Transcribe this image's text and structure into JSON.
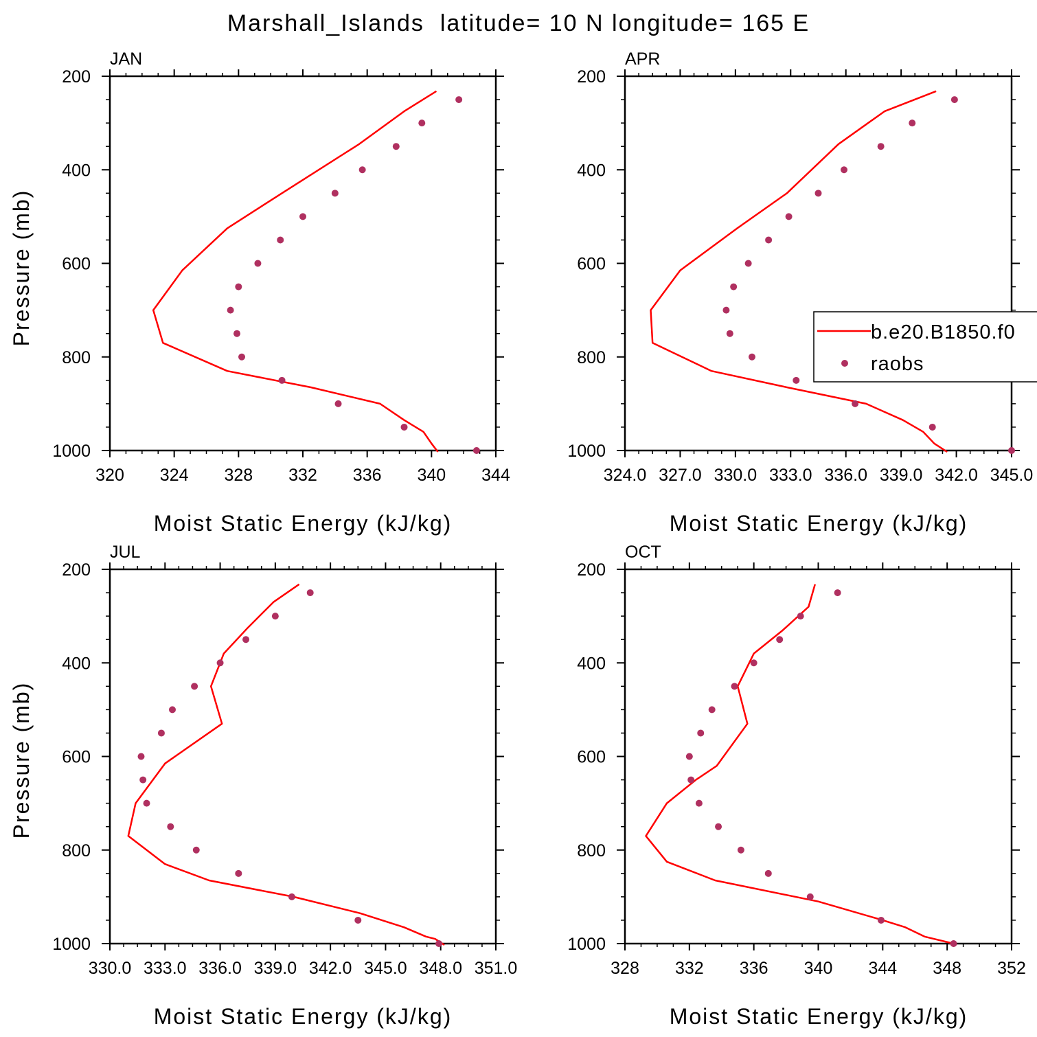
{
  "title": "Marshall_Islands  latitude= 10 N longitude= 165 E",
  "colors": {
    "model_line": "#ff0000",
    "obs_marker": "#b03060",
    "axes": "#000000"
  },
  "legend": {
    "placement": "right edge of APR panel",
    "entries": [
      {
        "label": "b.e20.B1850.f0",
        "style": "line",
        "color": "#ff0000"
      },
      {
        "label": "raobs",
        "style": "marker",
        "color": "#b03060"
      }
    ]
  },
  "chart_data": [
    {
      "type": "line",
      "panel": "JAN",
      "xlabel": "Moist Static Energy (kJ/kg)",
      "ylabel": "Pressure (mb)",
      "xlim": [
        320,
        344
      ],
      "ylim": [
        200,
        1000
      ],
      "y_inverted": true,
      "xticks": [
        "320",
        "324",
        "328",
        "332",
        "336",
        "340",
        "344"
      ],
      "xtick_values": [
        320,
        324,
        328,
        332,
        336,
        340,
        344
      ],
      "yticks": [
        "200",
        "400",
        "600",
        "800",
        "1000"
      ],
      "series": [
        {
          "name": "b.e20.B1850.f0",
          "style": "line",
          "x": [
            340.4,
            340.0,
            339.5,
            338.3,
            336.8,
            332.5,
            327.3,
            323.3,
            322.7,
            324.5,
            327.3,
            330.7,
            335.5,
            338.3,
            340.3
          ],
          "y": [
            1003,
            985,
            960,
            935,
            900,
            865,
            830,
            770,
            700,
            615,
            525,
            450,
            345,
            275,
            232
          ]
        },
        {
          "name": "raobs",
          "style": "marker",
          "x": [
            342.8,
            338.3,
            334.2,
            330.7,
            328.2,
            327.9,
            327.5,
            328.0,
            329.2,
            330.6,
            332.0,
            334.0,
            335.7,
            337.8,
            339.4,
            341.7
          ],
          "y": [
            1000,
            950,
            900,
            850,
            800,
            750,
            700,
            650,
            600,
            550,
            500,
            450,
            400,
            350,
            300,
            250
          ]
        }
      ]
    },
    {
      "type": "line",
      "panel": "APR",
      "xlabel": "Moist Static Energy (kJ/kg)",
      "ylabel": "",
      "xlim": [
        324.0,
        345.0
      ],
      "ylim": [
        200,
        1000
      ],
      "y_inverted": true,
      "xticks": [
        "324.0",
        "327.0",
        "330.0",
        "333.0",
        "336.0",
        "339.0",
        "342.0",
        "345.0"
      ],
      "xtick_values": [
        324,
        327,
        330,
        333,
        336,
        339,
        342,
        345
      ],
      "yticks": [
        "200",
        "400",
        "600",
        "800",
        "1000"
      ],
      "series": [
        {
          "name": "b.e20.B1850.f0",
          "style": "line",
          "x": [
            341.5,
            340.8,
            340.2,
            339.1,
            337.1,
            332.8,
            328.7,
            325.5,
            325.4,
            327.0,
            330.1,
            332.8,
            335.6,
            338.1,
            340.9
          ],
          "y": [
            1003,
            985,
            960,
            935,
            900,
            865,
            830,
            770,
            700,
            615,
            525,
            450,
            345,
            275,
            232
          ]
        },
        {
          "name": "raobs",
          "style": "marker",
          "x": [
            345.0,
            340.7,
            336.5,
            333.3,
            330.9,
            329.7,
            329.5,
            329.9,
            330.7,
            331.8,
            332.9,
            334.5,
            335.9,
            337.9,
            339.6,
            341.9
          ],
          "y": [
            1000,
            950,
            900,
            850,
            800,
            750,
            700,
            650,
            600,
            550,
            500,
            450,
            400,
            350,
            300,
            250
          ]
        }
      ]
    },
    {
      "type": "line",
      "panel": "JUL",
      "xlabel": "Moist Static Energy (kJ/kg)",
      "ylabel": "Pressure (mb)",
      "xlim": [
        330.0,
        351.0
      ],
      "ylim": [
        200,
        1000
      ],
      "y_inverted": true,
      "xticks": [
        "330.0",
        "333.0",
        "336.0",
        "339.0",
        "342.0",
        "345.0",
        "348.0",
        "351.0"
      ],
      "xtick_values": [
        330,
        333,
        336,
        339,
        342,
        345,
        348,
        351
      ],
      "yticks": [
        "200",
        "400",
        "600",
        "800",
        "1000"
      ],
      "series": [
        {
          "name": "b.e20.B1850.f0",
          "style": "line",
          "x": [
            348.2,
            347.7,
            347.2,
            346.0,
            343.6,
            340.0,
            335.4,
            333.0,
            331.0,
            331.4,
            333.0,
            336.1,
            335.5,
            336.2,
            337.5,
            338.9,
            340.3
          ],
          "y": [
            1003,
            990,
            985,
            965,
            935,
            900,
            865,
            830,
            770,
            700,
            615,
            530,
            450,
            380,
            325,
            270,
            232
          ]
        },
        {
          "name": "raobs",
          "style": "marker",
          "x": [
            347.9,
            343.5,
            339.9,
            337.0,
            334.7,
            333.3,
            332.0,
            331.8,
            331.7,
            332.8,
            333.4,
            334.6,
            336.0,
            337.4,
            339.0,
            340.9
          ],
          "y": [
            1000,
            950,
            900,
            850,
            800,
            750,
            700,
            650,
            600,
            550,
            500,
            450,
            400,
            350,
            300,
            250
          ]
        }
      ]
    },
    {
      "type": "line",
      "panel": "OCT",
      "xlabel": "Moist Static Energy (kJ/kg)",
      "ylabel": "",
      "xlim": [
        328,
        352
      ],
      "ylim": [
        200,
        1000
      ],
      "y_inverted": true,
      "xticks": [
        "328",
        "332",
        "336",
        "340",
        "344",
        "348",
        "352"
      ],
      "xtick_values": [
        328,
        332,
        336,
        340,
        344,
        348,
        352
      ],
      "yticks": [
        "200",
        "400",
        "600",
        "800",
        "1000"
      ],
      "series": [
        {
          "name": "b.e20.B1850.f0",
          "style": "line",
          "x": [
            348.4,
            346.6,
            345.4,
            344.0,
            340.0,
            333.6,
            330.6,
            329.3,
            330.6,
            332.4,
            333.7,
            335.6,
            335.0,
            336.0,
            337.8,
            339.4,
            339.8
          ],
          "y": [
            1000,
            985,
            965,
            950,
            910,
            865,
            825,
            770,
            700,
            650,
            620,
            530,
            450,
            380,
            330,
            280,
            232
          ]
        },
        {
          "name": "raobs",
          "style": "marker",
          "x": [
            348.4,
            343.9,
            339.5,
            336.9,
            335.2,
            333.8,
            332.6,
            332.1,
            332.0,
            332.7,
            333.4,
            334.8,
            336.0,
            337.6,
            338.9,
            341.2
          ],
          "y": [
            1000,
            950,
            900,
            850,
            800,
            750,
            700,
            650,
            600,
            550,
            500,
            450,
            400,
            350,
            300,
            250
          ]
        }
      ]
    }
  ]
}
